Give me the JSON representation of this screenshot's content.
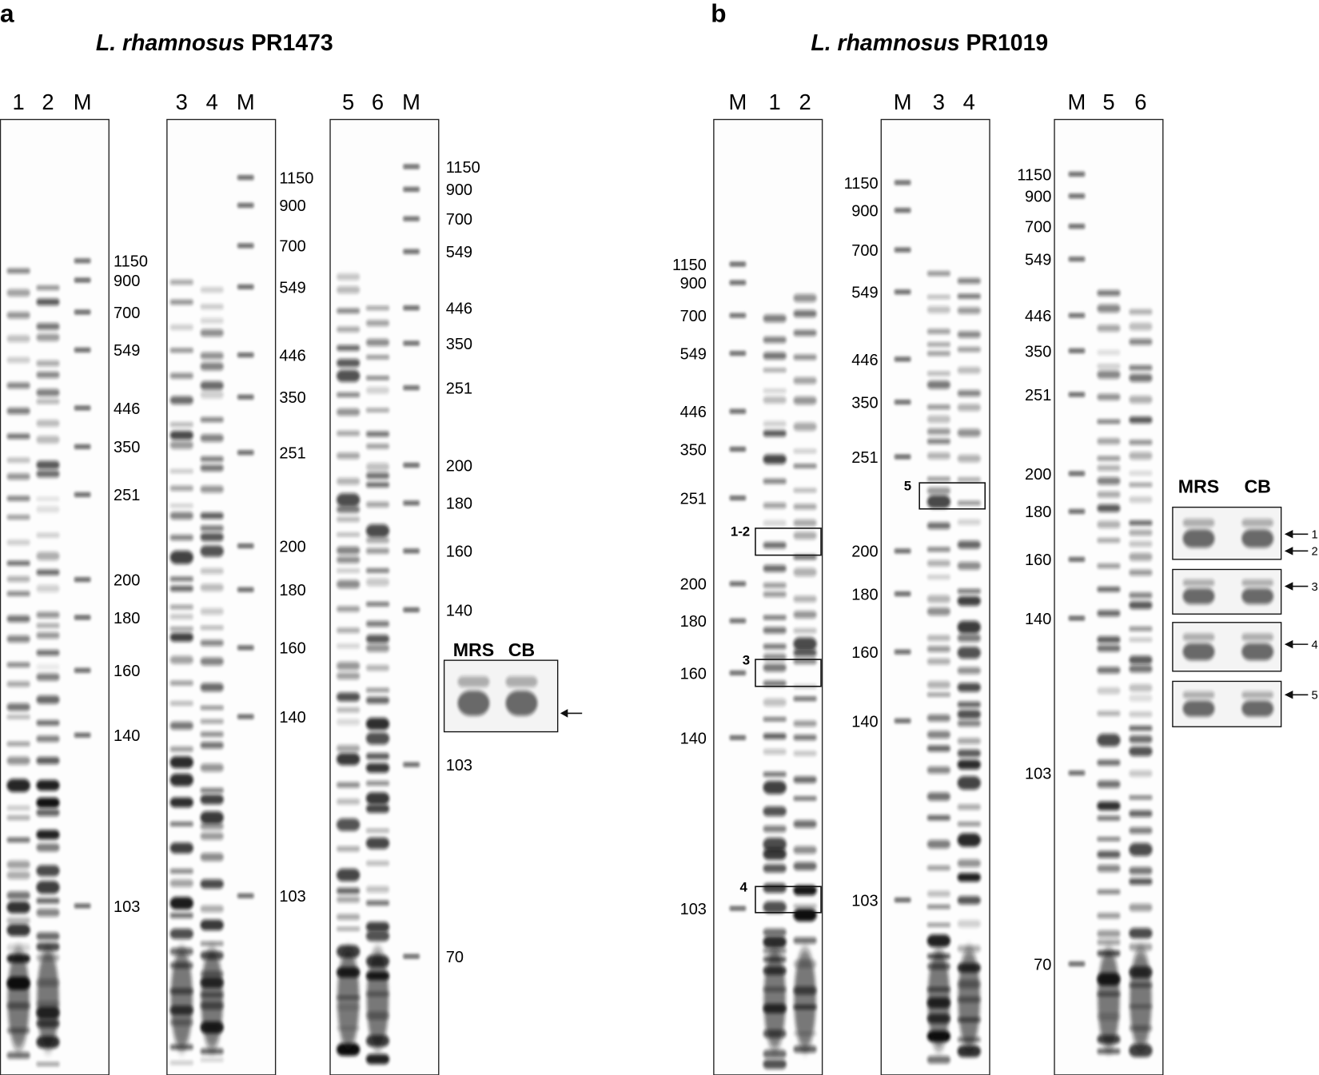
{
  "panels": [
    {
      "letter": "a",
      "title_italic": "L. rhamnosus",
      "title_strain": "PR1473",
      "gels": [
        {
          "lanes": [
            "1",
            "2",
            "M"
          ],
          "markers": [
            "1150",
            "900",
            "700",
            "549",
            "446",
            "350",
            "251",
            "200",
            "180",
            "160",
            "140",
            "103"
          ]
        },
        {
          "lanes": [
            "3",
            "4",
            "M"
          ],
          "markers": [
            "1150",
            "900",
            "700",
            "549",
            "446",
            "350",
            "251",
            "200",
            "180",
            "160",
            "140",
            "103"
          ]
        },
        {
          "lanes": [
            "5",
            "6",
            "M"
          ],
          "markers": [
            "1150",
            "900",
            "700",
            "549",
            "446",
            "350",
            "251",
            "200",
            "180",
            "160",
            "140",
            "103",
            "70"
          ]
        }
      ],
      "inset": {
        "lanes": [
          "MRS",
          "CB"
        ]
      }
    },
    {
      "letter": "b",
      "title_italic": "L. rhamnosus",
      "title_strain": "PR1019",
      "gels": [
        {
          "lanes": [
            "M",
            "1",
            "2"
          ],
          "markers": [
            "1150",
            "900",
            "700",
            "549",
            "446",
            "350",
            "251",
            "200",
            "180",
            "160",
            "140",
            "103"
          ],
          "boxes": [
            "1-2",
            "3",
            "4"
          ]
        },
        {
          "lanes": [
            "M",
            "3",
            "4"
          ],
          "markers": [
            "1150",
            "900",
            "700",
            "549",
            "446",
            "350",
            "251",
            "200",
            "180",
            "160",
            "140",
            "103"
          ],
          "boxes": [
            "5"
          ]
        },
        {
          "lanes": [
            "M",
            "5",
            "6"
          ],
          "markers": [
            "1150",
            "900",
            "700",
            "549",
            "446",
            "350",
            "251",
            "200",
            "180",
            "160",
            "140",
            "103",
            "70"
          ]
        }
      ],
      "inset": {
        "lanes": [
          "MRS",
          "CB"
        ],
        "arrows": [
          "1",
          "2",
          "3",
          "4",
          "5"
        ]
      }
    }
  ]
}
